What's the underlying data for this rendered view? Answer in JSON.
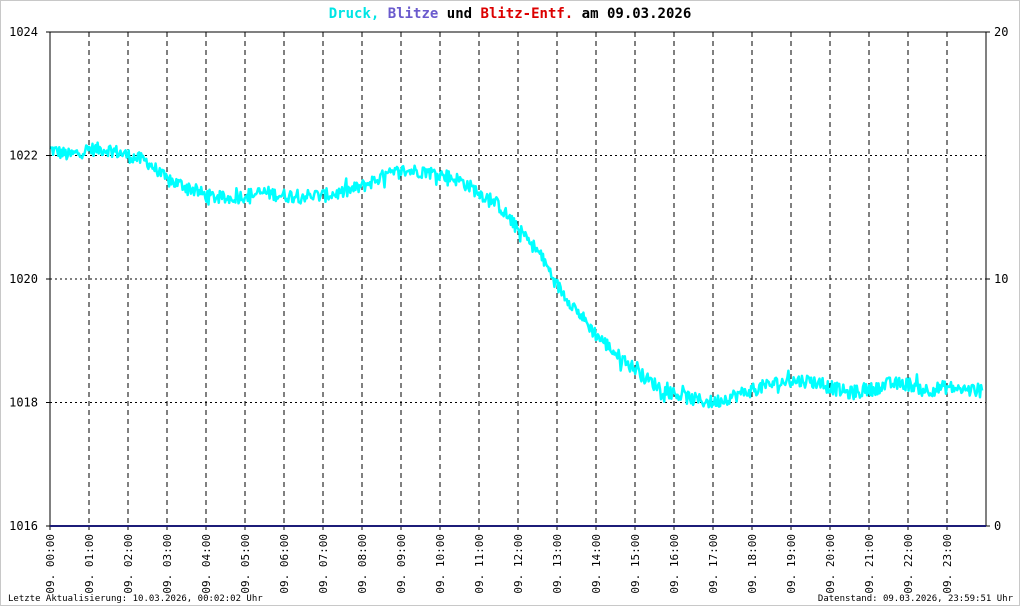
{
  "chart_data": {
    "type": "line",
    "title": {
      "druck": "Druck,",
      "blitze": "Blitze",
      "und": "und",
      "entf": "Blitz-Entf.",
      "am": "am 09.03.2026"
    },
    "y_left": {
      "min": 1016,
      "max": 1024,
      "ticks": [
        "1024",
        "1022",
        "1020",
        "1018",
        "1016"
      ]
    },
    "y_right": {
      "min": 0,
      "max": 20,
      "ticks": [
        "20",
        "10",
        "0"
      ]
    },
    "x_ticks": [
      "09. 00:00",
      "09. 01:00",
      "09. 02:00",
      "09. 03:00",
      "09. 04:00",
      "09. 05:00",
      "09. 06:00",
      "09. 07:00",
      "09. 08:00",
      "09. 09:00",
      "09. 10:00",
      "09. 11:00",
      "09. 12:00",
      "09. 13:00",
      "09. 14:00",
      "09. 15:00",
      "09. 16:00",
      "09. 17:00",
      "09. 18:00",
      "09. 19:00",
      "09. 20:00",
      "09. 21:00",
      "09. 22:00",
      "09. 23:00"
    ],
    "x_range_hours": [
      0,
      24
    ],
    "grid": true,
    "series": [
      {
        "name": "Druck",
        "color": "#00ffff",
        "x_hours": [
          0,
          0.5,
          1,
          1.5,
          2,
          2.5,
          3,
          3.5,
          4,
          4.5,
          5,
          5.5,
          6,
          6.5,
          7,
          7.5,
          8,
          8.5,
          9,
          9.5,
          10,
          10.5,
          11,
          11.5,
          12,
          12.25,
          12.5,
          12.75,
          13,
          13.25,
          13.5,
          13.75,
          14,
          14.25,
          14.5,
          14.75,
          15,
          15.25,
          15.5,
          15.75,
          16,
          16.5,
          17,
          17.5,
          18,
          18.5,
          19,
          19.5,
          20,
          20.5,
          21,
          21.5,
          22,
          22.5,
          23,
          23.5,
          23.9
        ],
        "values": [
          1022.1,
          1022.0,
          1022.1,
          1022.1,
          1022.0,
          1021.9,
          1021.6,
          1021.5,
          1021.35,
          1021.3,
          1021.35,
          1021.4,
          1021.35,
          1021.35,
          1021.35,
          1021.4,
          1021.5,
          1021.65,
          1021.75,
          1021.75,
          1021.7,
          1021.6,
          1021.4,
          1021.2,
          1020.8,
          1020.65,
          1020.45,
          1020.2,
          1019.9,
          1019.7,
          1019.5,
          1019.3,
          1019.1,
          1018.95,
          1018.8,
          1018.65,
          1018.55,
          1018.4,
          1018.3,
          1018.2,
          1018.15,
          1018.05,
          1018.0,
          1018.1,
          1018.2,
          1018.3,
          1018.35,
          1018.35,
          1018.25,
          1018.15,
          1018.2,
          1018.3,
          1018.3,
          1018.2,
          1018.25,
          1018.2,
          1018.2
        ]
      },
      {
        "name": "Blitze",
        "color": "#6a5acd",
        "values": []
      },
      {
        "name": "Blitz-Entf.",
        "color": "#dc0000",
        "values": []
      }
    ]
  },
  "footer": {
    "left": "Letzte Aktualisierung: 10.03.2026, 00:02:02 Uhr",
    "right": "Datenstand: 09.03.2026, 23:59:51 Uhr"
  }
}
